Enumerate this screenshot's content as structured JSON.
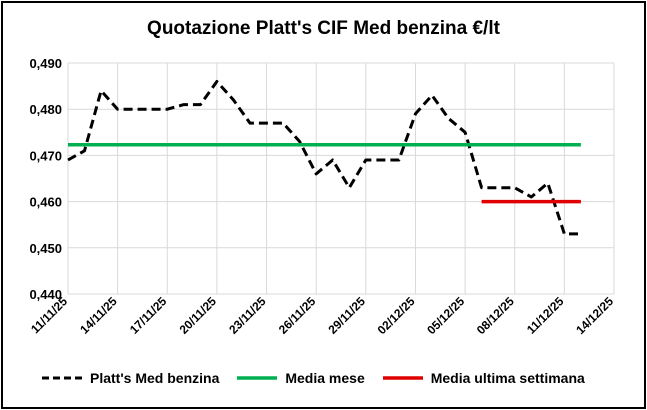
{
  "chart_data": {
    "type": "line",
    "title": "Quotazione Platt's CIF Med benzina €/lt",
    "xlabel": "",
    "ylabel": "",
    "ylim": [
      0.44,
      0.49
    ],
    "y_ticks": [
      "0,440",
      "0,450",
      "0,460",
      "0,470",
      "0,480",
      "0,490"
    ],
    "x_ticks": [
      "11/11/25",
      "14/11/25",
      "17/11/25",
      "20/11/25",
      "23/11/25",
      "26/11/25",
      "29/11/25",
      "02/12/25",
      "05/12/25",
      "08/12/25",
      "11/12/25",
      "14/12/25"
    ],
    "x_start": "2025-11-11",
    "x_end": "2025-12-14",
    "grid": true,
    "legend_position": "bottom",
    "series": [
      {
        "name": "Platt's Med benzina",
        "color": "#000000",
        "style": "dashed",
        "points": [
          [
            "2025-11-11",
            0.469
          ],
          [
            "2025-11-12",
            0.471
          ],
          [
            "2025-11-13",
            0.484
          ],
          [
            "2025-11-14",
            0.48
          ],
          [
            "2025-11-17",
            0.48
          ],
          [
            "2025-11-18",
            0.481
          ],
          [
            "2025-11-19",
            0.481
          ],
          [
            "2025-11-20",
            0.486
          ],
          [
            "2025-11-21",
            0.482
          ],
          [
            "2025-11-22",
            0.477
          ],
          [
            "2025-11-24",
            0.477
          ],
          [
            "2025-11-25",
            0.473
          ],
          [
            "2025-11-26",
            0.466
          ],
          [
            "2025-11-27",
            0.469
          ],
          [
            "2025-11-28",
            0.463
          ],
          [
            "2025-11-29",
            0.469
          ],
          [
            "2025-12-01",
            0.469
          ],
          [
            "2025-12-02",
            0.479
          ],
          [
            "2025-12-03",
            0.483
          ],
          [
            "2025-12-04",
            0.478
          ],
          [
            "2025-12-05",
            0.475
          ],
          [
            "2025-12-06",
            0.463
          ],
          [
            "2025-12-08",
            0.463
          ],
          [
            "2025-12-09",
            0.461
          ],
          [
            "2025-12-10",
            0.464
          ],
          [
            "2025-12-11",
            0.453
          ],
          [
            "2025-12-12",
            0.453
          ]
        ]
      },
      {
        "name": "Media mese",
        "color": "#00b050",
        "style": "solid",
        "points": [
          [
            "2025-11-11",
            0.4723
          ],
          [
            "2025-12-12",
            0.4723
          ]
        ]
      },
      {
        "name": "Media ultima settimana",
        "color": "#e00000",
        "style": "solid",
        "points": [
          [
            "2025-12-06",
            0.46
          ],
          [
            "2025-12-12",
            0.46
          ]
        ]
      }
    ]
  }
}
